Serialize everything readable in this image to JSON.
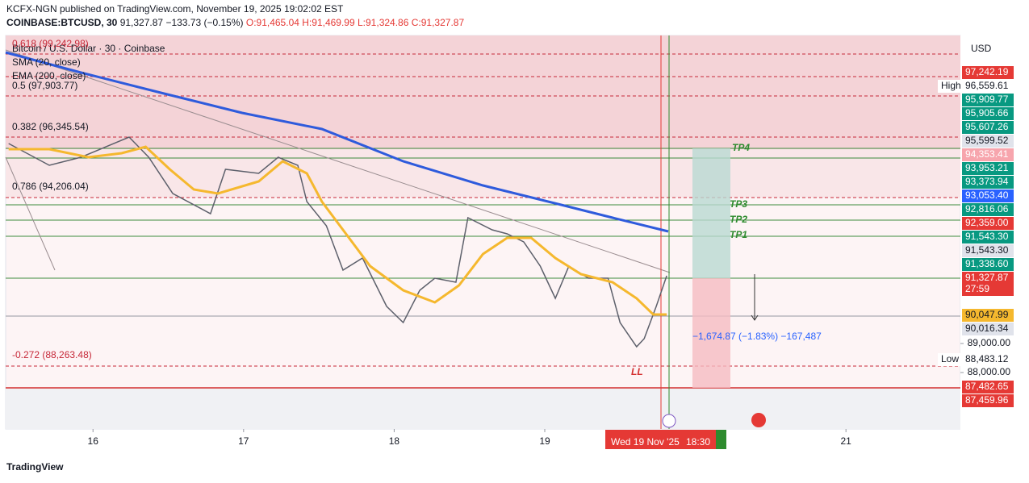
{
  "header": {
    "published": "KCFX-NGN published on TradingView.com, November 19, 2025 19:02:02 EST",
    "symbol": "COINBASE:BTCUSD, 30",
    "last": "91,327.87",
    "change": "−133.73 (−0.15%)",
    "open": "O:91,465.04",
    "high": "H:91,469.99",
    "low": "L:91,324.86",
    "close": "C:91,327.87"
  },
  "chart_data": {
    "type": "line",
    "xlim": [
      15.42,
      21.76
    ],
    "xticks": [
      16,
      17,
      18,
      19,
      21
    ],
    "ylim": [
      86056,
      99611
    ],
    "yticks": [
      {
        "value": 89000,
        "label": "89,000.00"
      },
      {
        "value": 88000,
        "label": "88,000.00"
      }
    ],
    "series": [
      {
        "name": "Bitcoin / U.S. Dollar · 30 · Coinbase",
        "color": "#5d606b",
        "x": [
          15.44,
          15.71,
          15.92,
          16.24,
          16.37,
          16.53,
          16.78,
          16.88,
          17.1,
          17.23,
          17.36,
          17.42,
          17.55,
          17.66,
          17.79,
          17.95,
          18.06,
          18.17,
          18.27,
          18.41,
          18.49,
          18.65,
          18.75,
          18.86,
          18.97,
          19.07,
          19.16,
          19.29,
          19.42,
          19.5,
          19.61,
          19.66,
          19.74,
          19.81
        ],
        "values": [
          95889,
          95139,
          95417,
          96111,
          95417,
          94167,
          93472,
          95000,
          94861,
          95417,
          95139,
          93889,
          93056,
          91528,
          91944,
          90278,
          89722,
          90833,
          91250,
          91111,
          93333,
          92917,
          92778,
          92500,
          91667,
          90556,
          91667,
          91250,
          91250,
          89722,
          88889,
          89167,
          90278,
          91333
        ]
      },
      {
        "name": "SMA (20, close)",
        "color": "#f5b82e",
        "x": [
          15.44,
          15.71,
          15.97,
          16.19,
          16.35,
          16.51,
          16.67,
          16.83,
          17.1,
          17.26,
          17.42,
          17.52,
          17.68,
          17.84,
          18.06,
          18.27,
          18.43,
          18.59,
          18.75,
          18.91,
          19.07,
          19.24,
          19.45,
          19.61,
          19.72,
          19.81
        ],
        "values": [
          95694,
          95694,
          95417,
          95556,
          95778,
          95000,
          94306,
          94167,
          94583,
          95278,
          94861,
          93889,
          92778,
          91667,
          90833,
          90417,
          91000,
          92083,
          92639,
          92639,
          91944,
          91389,
          91111,
          90556,
          90000,
          90000
        ]
      },
      {
        "name": "EMA (200, close)",
        "color": "#2e5bdc",
        "x": [
          15.42,
          15.92,
          16.45,
          16.99,
          17.52,
          18.06,
          18.59,
          19.13,
          19.45,
          19.82
        ],
        "values": [
          99028,
          98333,
          97639,
          96944,
          96389,
          95278,
          94444,
          93750,
          93333,
          92861
        ]
      }
    ]
  },
  "price_labels": [
    "97,242.19",
    "High",
    "96,559.61",
    "95,909.77",
    "95,905.66",
    "95,607.26",
    "95,599.52",
    "94,353.41",
    "93,953.21",
    "93,373.94",
    "93,053.40",
    "92,816.06",
    "92,359.00",
    "91,543.30",
    "91,543.30",
    "91,338.60",
    "91,327.87",
    "27:59",
    "90,047.99",
    "90,016.34",
    "Low",
    "88,483.12",
    "87,482.65",
    "87,459.96"
  ],
  "currency": "USD",
  "fib_labels": [
    "0.618 (99,242.98)",
    "0.5 (97,903.77)",
    "0.382 (96,345.54)",
    "0.786 (94,206.04)",
    "-0.272 (88,263.48)"
  ],
  "targets": [
    "TP4",
    "TP3",
    "TP2",
    "TP1"
  ],
  "swing_label": "LL",
  "measure": "−1,674.87 (−1.83%) −167,487",
  "time_badge": "Wed 19 Nov '25",
  "time_badge_time": "18:30",
  "footer": "TradingView"
}
